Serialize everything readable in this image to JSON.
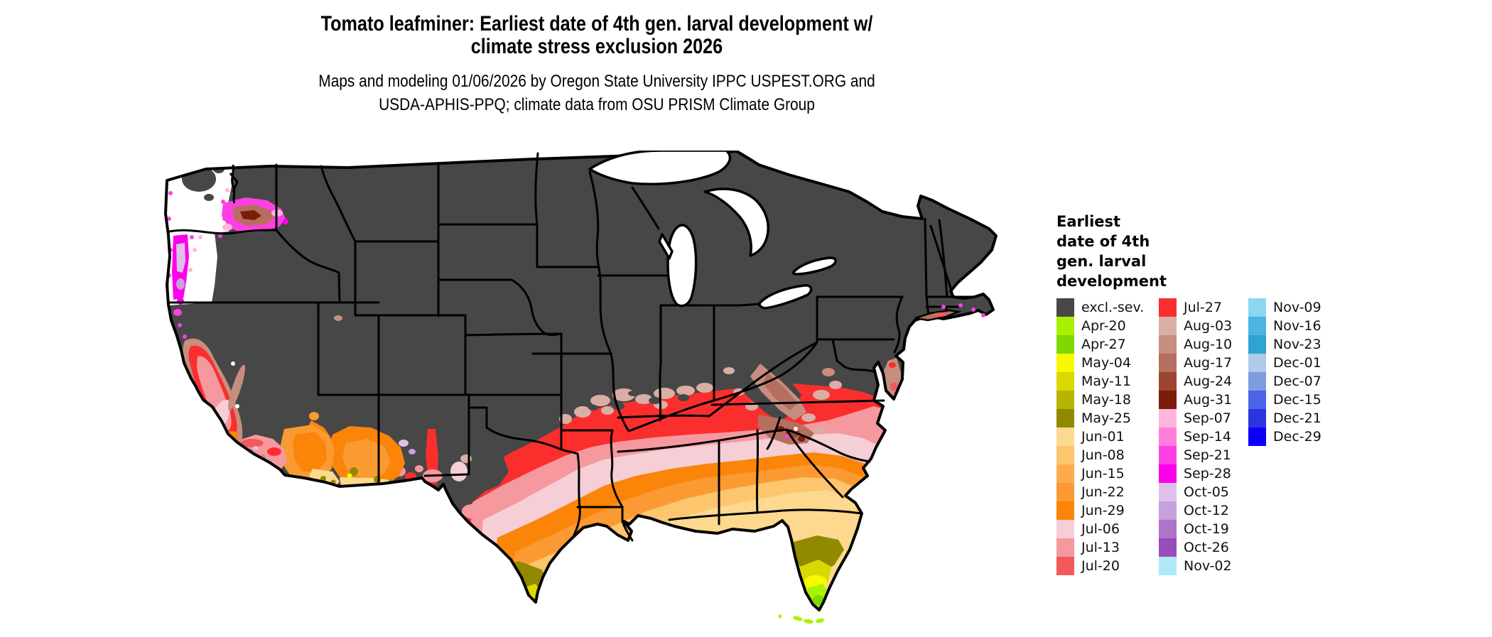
{
  "title": {
    "line1": "Tomato leafminer: Earliest date of 4th gen. larval development w/",
    "line2": "climate stress exclusion 2026"
  },
  "subtitle": {
    "line1": "Maps and modeling 01/06/2026 by Oregon State University IPPC USPEST.ORG and",
    "line2": "USDA-APHIS-PPQ; climate data from OSU PRISM Climate Group"
  },
  "legend": {
    "title_lines": [
      "Earliest",
      "date of 4th",
      "gen. larval",
      "development"
    ],
    "columns": [
      [
        {
          "label": "excl.-sev.",
          "color": "#474747"
        },
        {
          "label": "Apr-20",
          "color": "#A9F000"
        },
        {
          "label": "Apr-27",
          "color": "#7FD800"
        },
        {
          "label": "May-04",
          "color": "#F8F800"
        },
        {
          "label": "May-11",
          "color": "#D9D900"
        },
        {
          "label": "May-18",
          "color": "#B5B400"
        },
        {
          "label": "May-25",
          "color": "#918A00"
        },
        {
          "label": "Jun-01",
          "color": "#FCD98E"
        },
        {
          "label": "Jun-08",
          "color": "#FCC56E"
        },
        {
          "label": "Jun-15",
          "color": "#FCAC4F"
        },
        {
          "label": "Jun-22",
          "color": "#FB9A33"
        },
        {
          "label": "Jun-29",
          "color": "#FB8509"
        },
        {
          "label": "Jul-06",
          "color": "#F5CED6"
        },
        {
          "label": "Jul-13",
          "color": "#F5999F"
        },
        {
          "label": "Jul-20",
          "color": "#F2595B"
        }
      ],
      [
        {
          "label": "Jul-27",
          "color": "#FB2E2E"
        },
        {
          "label": "Aug-03",
          "color": "#D9AEA4"
        },
        {
          "label": "Aug-10",
          "color": "#C78E7F"
        },
        {
          "label": "Aug-17",
          "color": "#B56F5F"
        },
        {
          "label": "Aug-24",
          "color": "#9C4632"
        },
        {
          "label": "Aug-31",
          "color": "#7C1D0A"
        },
        {
          "label": "Sep-07",
          "color": "#FFB5DF"
        },
        {
          "label": "Sep-14",
          "color": "#FF7EDB"
        },
        {
          "label": "Sep-21",
          "color": "#FE3FE3"
        },
        {
          "label": "Sep-28",
          "color": "#FB00EB"
        },
        {
          "label": "Oct-05",
          "color": "#DCC2E9"
        },
        {
          "label": "Oct-12",
          "color": "#C8A0DB"
        },
        {
          "label": "Oct-19",
          "color": "#AD74C9"
        },
        {
          "label": "Oct-26",
          "color": "#9A4CBB"
        },
        {
          "label": "Nov-02",
          "color": "#AEE9F8"
        }
      ],
      [
        {
          "label": "Nov-09",
          "color": "#8BD7F0"
        },
        {
          "label": "Nov-16",
          "color": "#4CB4E0"
        },
        {
          "label": "Nov-23",
          "color": "#2FA3D4"
        },
        {
          "label": "Dec-01",
          "color": "#AFC9E9"
        },
        {
          "label": "Dec-07",
          "color": "#7F9CE0"
        },
        {
          "label": "Dec-15",
          "color": "#4A63E8"
        },
        {
          "label": "Dec-21",
          "color": "#2A35E0"
        },
        {
          "label": "Dec-29",
          "color": "#0B00F5"
        }
      ]
    ]
  },
  "map": {
    "region": "Contiguous United States",
    "base_excluded_color": "#474747",
    "water_color": "#FFFFFF"
  }
}
